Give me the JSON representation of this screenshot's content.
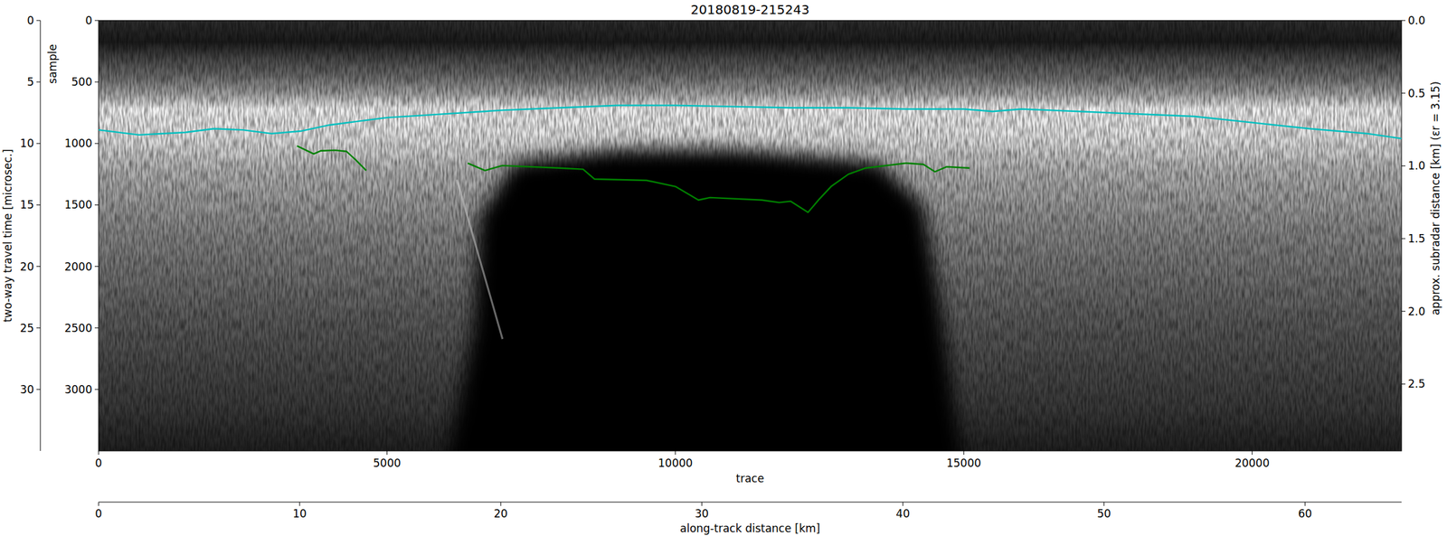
{
  "chart_data": {
    "type": "line",
    "title": "20180819-215243",
    "x_label": "trace",
    "y_label": "sample",
    "xlim": [
      0,
      22590
    ],
    "ylim": [
      3500,
      0
    ],
    "xticks": [
      0,
      5000,
      10000,
      15000,
      20000
    ],
    "yticks": [
      0,
      500,
      1000,
      1500,
      2000,
      2500,
      3000
    ],
    "y2_label": "approx. subradar distance [km] (εr = 3.15)",
    "y2lim": [
      2.96,
      0
    ],
    "y2ticks": [
      {
        "value": 0,
        "label": "0.0"
      },
      0.5,
      {
        "value": 1,
        "label": "1.0"
      },
      1.5,
      {
        "value": 2,
        "label": "2.0"
      },
      2.5
    ],
    "y3_label": "two-way travel time [microsec.]",
    "y3lim": [
      35,
      0
    ],
    "y3ticks": [
      0,
      5,
      10,
      15,
      20,
      25,
      30
    ],
    "x2_label": "along-track distance [km]",
    "x2lim": [
      0,
      64.8
    ],
    "x2ticks": [
      0,
      10,
      20,
      30,
      40,
      50,
      60
    ],
    "series": [
      {
        "color": "#00bfbf",
        "x": [
          0,
          700,
          1500,
          2000,
          2500,
          3000,
          3500,
          4000,
          4500,
          5000,
          6000,
          7000,
          8000,
          9000,
          10000,
          11000,
          12000,
          13000,
          14000,
          15000,
          15500,
          16000,
          16500,
          17000,
          18000,
          19000,
          20000,
          21000,
          22000,
          22590
        ],
        "values": [
          890,
          930,
          910,
          880,
          890,
          920,
          900,
          850,
          820,
          790,
          760,
          730,
          710,
          690,
          690,
          700,
          710,
          710,
          720,
          720,
          740,
          720,
          730,
          740,
          760,
          780,
          830,
          880,
          920,
          960
        ]
      },
      {
        "color": "#008000",
        "x": [
          3440,
          3620,
          3730,
          3850,
          4100,
          4300,
          4450,
          4640
        ],
        "values": [
          1020,
          1060,
          1085,
          1060,
          1055,
          1065,
          1130,
          1220
        ]
      },
      {
        "color": "#008000",
        "x": [
          6400,
          6700,
          7000,
          8000,
          8400,
          8600,
          9500,
          10000,
          10400,
          10600,
          11500,
          11800,
          12000,
          12300,
          12500,
          12700,
          13000,
          13300,
          14000,
          14300,
          14500,
          14700,
          15100
        ],
        "values": [
          1160,
          1220,
          1180,
          1200,
          1210,
          1290,
          1300,
          1350,
          1460,
          1440,
          1460,
          1480,
          1470,
          1560,
          1450,
          1350,
          1250,
          1200,
          1160,
          1170,
          1230,
          1190,
          1200
        ]
      }
    ]
  }
}
